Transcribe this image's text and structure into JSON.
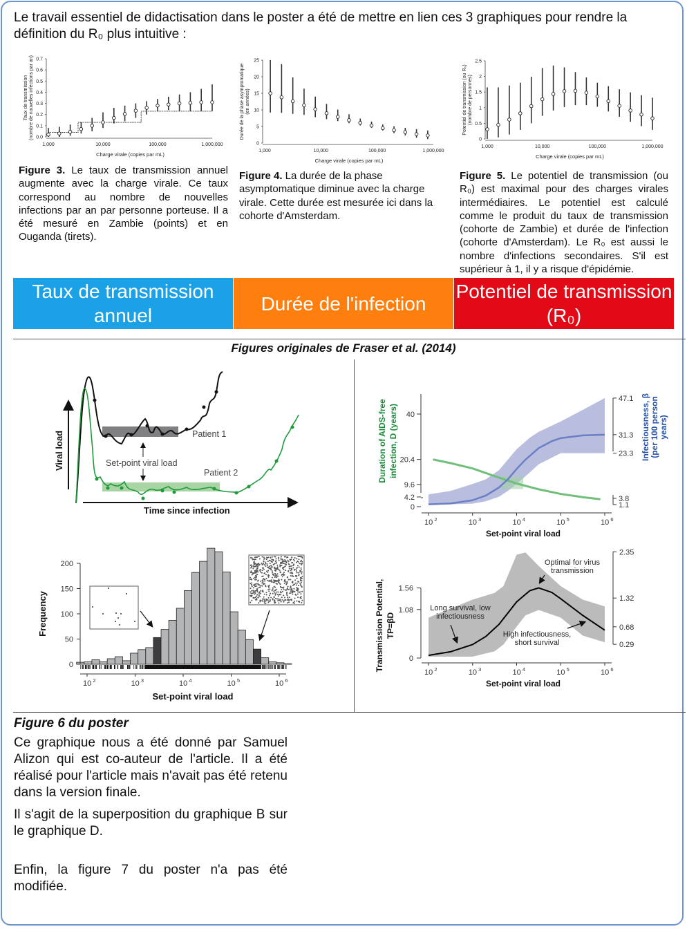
{
  "intro": "Le travail essentiel de didactisation dans le poster a été de mettre en lien ces 3 graphiques pour rendre la définition du R₀ plus intuitive :",
  "captions": [
    {
      "label": "Figure 3.",
      "text": " Le taux de transmission annuel augmente avec la charge virale. Ce taux correspond  au nombre de nouvelles infections par an par personne  porteuse. Il a été mesuré en Zambie (points) et en Ouganda (tirets)."
    },
    {
      "label": "Figure 4.",
      "text": " La durée de la phase asymptomatique  diminue avec la charge virale. Cette durée est mesurée ici dans la cohorte d'Amsterdam."
    },
    {
      "label": "Figure 5.",
      "text": " Le potentiel de transmission (ou R₀) est  maximal pour des charges virales intermédiaires.   Le potentiel est calculé comme le produit du taux de  transmission (cohorte de Zambie) et durée de l'infection (cohorte d'Amsterdam). Le R₀ est aussi le nombre  d'infections secondaires. S'il est supérieur à 1, il y a risque d'épidémie."
    }
  ],
  "bands": [
    {
      "label": "Taux de transmission annuel",
      "color": "#1ba1e6"
    },
    {
      "label": "Durée de l'infection",
      "color": "#ff7f0e"
    },
    {
      "label": "Potentiel de transmission (R₀)",
      "color": "#e30a17"
    }
  ],
  "originals_title": "Figures originales de Fraser et al. (2014)",
  "bottom": {
    "heading": "Figure 6 du poster",
    "paragraphs": [
      "Ce graphique nous a été donné par Samuel Alizon qui est co-auteur de l'article. Il a été réalisé pour l'article mais n'avait pas été retenu dans la version finale.",
      "Il s'agit de la superposition du graphique B sur le graphique D.",
      "Enfin, la figure 7 du poster n'a pas été modifiée."
    ]
  },
  "chart_data": [
    {
      "id": "fig3",
      "type": "scatter",
      "xscale": "log",
      "xlabel": "Charge virale (copies par mL)",
      "ylabel": [
        "Taux de transmission",
        "(nombre de nouvelles infections par an)"
      ],
      "xticks": [
        "1,000",
        "10,000",
        "100,000",
        "1,000,000"
      ],
      "yticks": [
        "0.0",
        "0.1",
        "0.2",
        "0.3",
        "0.4",
        "0.5",
        "0.6",
        "0.7"
      ],
      "xlim": [
        1000,
        1000000
      ],
      "ylim": [
        0,
        0.7
      ],
      "x": [
        1000,
        1585,
        2512,
        3981,
        6310,
        10000,
        15850,
        25120,
        39810,
        63100,
        100000,
        158500,
        251200,
        398100,
        631000,
        1000000
      ],
      "y": [
        0.02,
        0.03,
        0.045,
        0.07,
        0.1,
        0.13,
        0.17,
        0.205,
        0.235,
        0.26,
        0.28,
        0.29,
        0.3,
        0.305,
        0.31,
        0.31
      ],
      "err_low": [
        0,
        0,
        0.01,
        0.03,
        0.05,
        0.08,
        0.12,
        0.14,
        0.17,
        0.2,
        0.23,
        0.24,
        0.23,
        0.23,
        0.23,
        0.23
      ],
      "err_high": [
        0.08,
        0.09,
        0.11,
        0.13,
        0.17,
        0.22,
        0.26,
        0.28,
        0.3,
        0.32,
        0.34,
        0.36,
        0.38,
        0.4,
        0.43,
        0.47
      ],
      "step_dashed": {
        "x": [
          1000,
          3500,
          3500,
          50000,
          50000,
          1000000
        ],
        "y": [
          0.04,
          0.04,
          0.13,
          0.13,
          0.23,
          0.23
        ]
      }
    },
    {
      "id": "fig4",
      "type": "scatter",
      "xscale": "log",
      "xlabel": "Charge virale (copies par mL)",
      "ylabel": [
        "Durée de la phase asymptomatique",
        "(en années)"
      ],
      "xticks": [
        "1,000",
        "10,000",
        "100,000",
        "1,000,000"
      ],
      "yticks": [
        "0",
        "5",
        "10",
        "15",
        "20",
        "25"
      ],
      "xlim": [
        1000,
        1000000
      ],
      "ylim": [
        0,
        25
      ],
      "x": [
        1259,
        1995,
        3162,
        5012,
        7943,
        12589,
        19953,
        31623,
        50119,
        79433,
        125893,
        199526,
        316228,
        501187,
        794328
      ],
      "y": [
        15,
        13.8,
        12.6,
        11.4,
        10.2,
        9,
        7.9,
        6.9,
        6.1,
        5.3,
        4.5,
        3.9,
        3.3,
        2.7,
        2.3
      ],
      "err_low": [
        9.2,
        9.1,
        8.8,
        8.5,
        7.8,
        7.2,
        6.6,
        6,
        5.3,
        4.6,
        3.8,
        3,
        2.3,
        1.6,
        1.2
      ],
      "err_high": [
        25,
        23.8,
        19.8,
        16.4,
        14,
        11.8,
        10.1,
        8.7,
        7.4,
        6.5,
        5.6,
        5.1,
        4.6,
        4.2,
        3.8
      ]
    },
    {
      "id": "fig5",
      "type": "scatter",
      "xscale": "log",
      "xlabel": "Charge virale (copies par mL)",
      "ylabel": [
        "Potentiel de transmission (ou R₀)",
        "(nombre de personnes)"
      ],
      "xticks": [
        "1,000",
        "10,000",
        "100,000",
        "1,000,000"
      ],
      "yticks": [
        "0",
        "0.5",
        "1",
        "1.5",
        "2",
        "2.5"
      ],
      "xlim": [
        1000,
        1000000
      ],
      "ylim": [
        0,
        2.5
      ],
      "x": [
        1000,
        1585,
        2512,
        3981,
        6310,
        10000,
        15850,
        25120,
        39810,
        63100,
        100000,
        158500,
        251200,
        398100,
        631000,
        1000000
      ],
      "y": [
        0.31,
        0.45,
        0.62,
        0.82,
        1.05,
        1.27,
        1.44,
        1.53,
        1.54,
        1.48,
        1.36,
        1.21,
        1.06,
        0.91,
        0.78,
        0.66
      ],
      "err_low": [
        0,
        0.05,
        0.14,
        0.29,
        0.5,
        0.74,
        0.91,
        1.02,
        1.08,
        1.08,
        1.03,
        0.88,
        0.71,
        0.55,
        0.41,
        0.29
      ],
      "err_high": [
        1.65,
        1.65,
        1.71,
        1.8,
        1.99,
        2.27,
        2.35,
        2.29,
        2.14,
        1.97,
        1.8,
        1.69,
        1.59,
        1.49,
        1.4,
        1.32
      ]
    },
    {
      "id": "figA",
      "type": "diagram",
      "xlabel": "Time since infection",
      "ylabel": "Viral load",
      "labels": {
        "patient1": "Patient 1",
        "patient2": "Patient 2",
        "setpoint": "Set-point viral load"
      },
      "colors": {
        "patient1": "#111111",
        "patient2": "#1e9a3c"
      }
    },
    {
      "id": "figB",
      "type": "line",
      "xscale": "log",
      "xlabel": "Set-point viral load",
      "ylabel_left": [
        "Duration of AIDS-free",
        "infection, D (years)"
      ],
      "ylabel_right": [
        "Infectiousness, β",
        "(per 100 person",
        "years)"
      ],
      "xticks": [
        "10",
        "10",
        "10",
        "10",
        "10"
      ],
      "xtick_exp": [
        "2",
        "3",
        "4",
        "5",
        "6"
      ],
      "yticks_left": [
        0,
        4.2,
        9.6,
        20.4,
        40
      ],
      "yticks_right": [
        1.1,
        3.8,
        23.3,
        31.3,
        47.1
      ],
      "ylim_left": [
        0,
        40
      ],
      "colors": {
        "duration": "#6fbf7a",
        "infectiousness": "#6a7fc6",
        "infectiousness_band": "#b9bedf"
      },
      "duration": {
        "log10x": [
          2.1,
          2.5,
          3,
          3.5,
          4,
          4.5,
          5,
          5.5,
          5.9
        ],
        "D": [
          20.4,
          18.8,
          16.5,
          13.2,
          10,
          7.5,
          5.5,
          4.1,
          3.2
        ]
      },
      "infectiousness": {
        "log10x": [
          2,
          2.5,
          3,
          3.3,
          3.6,
          3.8,
          4,
          4.2,
          4.5,
          4.8,
          5,
          5.5,
          6
        ],
        "beta": [
          1.2,
          1.6,
          3,
          5,
          8.5,
          12,
          16.5,
          20.5,
          25.5,
          28.5,
          29.8,
          31,
          31.3
        ]
      },
      "infectiousness_band": {
        "log10x": [
          2,
          2.5,
          3,
          3.3,
          3.6,
          3.8,
          4,
          4.3,
          4.5,
          5,
          5.5,
          6
        ],
        "low": [
          1.1,
          1.2,
          1.5,
          2.5,
          4.5,
          7,
          10,
          15,
          18.5,
          23.3,
          23.3,
          23.3
        ],
        "high": [
          5.5,
          7,
          10,
          12,
          16,
          20.5,
          25,
          30,
          32.5,
          37,
          42,
          47.1
        ]
      }
    },
    {
      "id": "figC",
      "type": "bar",
      "xscale": "log",
      "xlabel": "Set-point viral load",
      "ylabel": "Frequency",
      "xticks": [
        "10",
        "10",
        "10",
        "10",
        "10"
      ],
      "xtick_exp": [
        "2",
        "3",
        "4",
        "5",
        "6"
      ],
      "yticks": [
        0,
        50,
        100,
        150,
        200
      ],
      "ylim": [
        0,
        200
      ],
      "bin_start_log10": 1.78,
      "bin_width_log10": 0.16,
      "values": [
        4,
        5,
        9,
        5,
        11,
        15,
        7,
        22,
        29,
        33,
        53,
        69,
        87,
        111,
        146,
        182,
        204,
        230,
        223,
        183,
        104,
        68,
        49,
        30,
        13,
        5,
        3,
        1
      ],
      "highlighted_bins": [
        10,
        23
      ],
      "colors": {
        "bar": "#b4b5b7",
        "highlight": "#3d3d3f"
      }
    },
    {
      "id": "figD",
      "type": "line",
      "xscale": "log",
      "xlabel": "Set-point viral load",
      "ylabel": [
        "Transmission Potential,",
        "TP=βD"
      ],
      "xticks": [
        "10",
        "10",
        "10",
        "10",
        "10"
      ],
      "xtick_exp": [
        "2",
        "3",
        "4",
        "5",
        "6"
      ],
      "yticks_left": [
        0,
        1.08,
        1.56
      ],
      "yticks_right": [
        0.29,
        0.68,
        1.32,
        2.35
      ],
      "annotations": {
        "optimal": [
          "Optimal for virus",
          "transmission"
        ],
        "long": [
          "Long survival, low",
          "infectiousness"
        ],
        "high": [
          "High infectiousness,",
          "short survival"
        ]
      },
      "tp": {
        "log10x": [
          2,
          2.5,
          3,
          3.3,
          3.6,
          4,
          4.3,
          4.5,
          4.8,
          5,
          5.5,
          6
        ],
        "value": [
          0.06,
          0.14,
          0.3,
          0.48,
          0.75,
          1.25,
          1.5,
          1.56,
          1.46,
          1.32,
          0.95,
          0.62
        ]
      },
      "band": {
        "log10x": [
          2,
          2.5,
          3,
          3.5,
          3.7,
          4,
          4.2,
          4.5,
          5,
          5.5,
          6
        ],
        "low": [
          0.03,
          0.03,
          0.03,
          0.15,
          0.3,
          0.7,
          0.95,
          1.07,
          0.9,
          0.5,
          0.35
        ],
        "high": [
          0.9,
          1.1,
          1.3,
          1.45,
          1.6,
          2.3,
          2.35,
          2.05,
          1.6,
          1.3,
          1.15
        ]
      },
      "colors": {
        "band": "#bcbbbb",
        "line": "#000000"
      }
    }
  ]
}
